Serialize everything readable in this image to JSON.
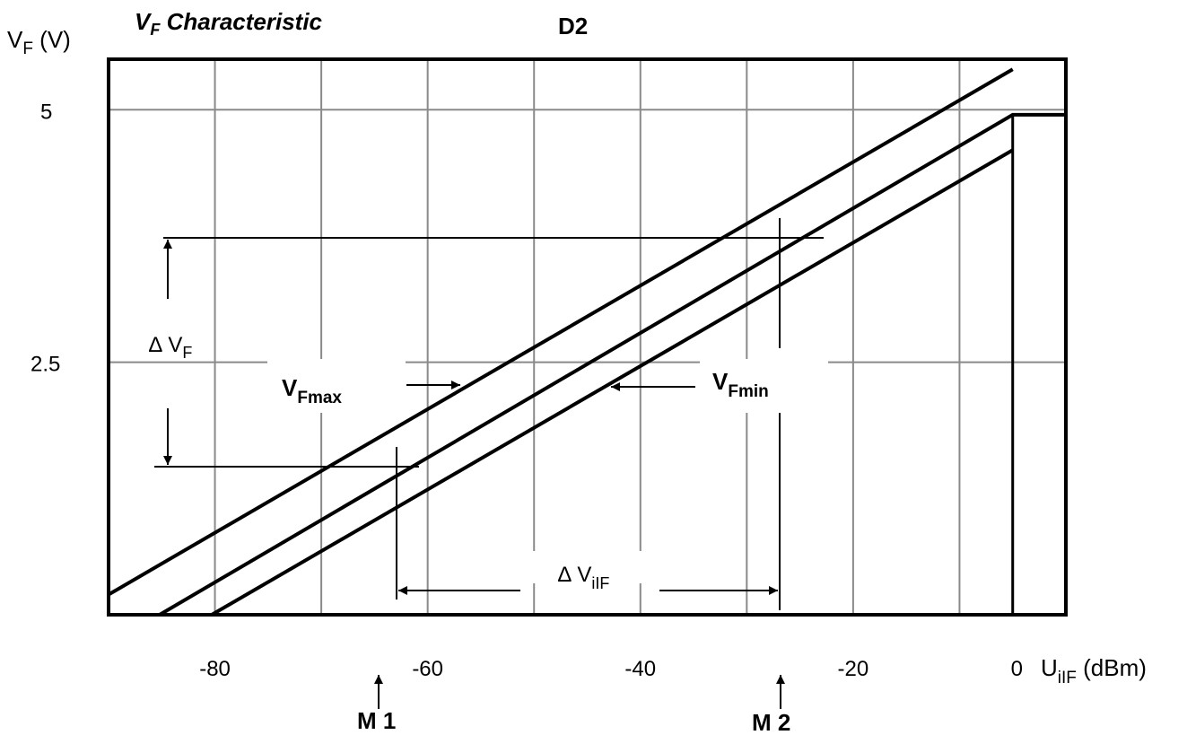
{
  "chart_data": {
    "type": "line",
    "title": "Characteristic",
    "title_symbol": "V",
    "title_symbol_sub": "F",
    "subtitle": "D2",
    "ylabel": "V",
    "ylabel_sub": "F",
    "ylabel_unit": " (V)",
    "xlabel": "U",
    "xlabel_sub": "iIF",
    "xlabel_unit": " (dBm)",
    "xlim": [
      -90,
      0
    ],
    "ylim": [
      0,
      5.5
    ],
    "x_ticks": [
      {
        "value": -80,
        "label": "-80"
      },
      {
        "value": -60,
        "label": "-60"
      },
      {
        "value": -40,
        "label": "-40"
      },
      {
        "value": -20,
        "label": "-20"
      },
      {
        "value": 0,
        "label": "0"
      }
    ],
    "y_ticks": [
      {
        "value": 5,
        "label": "5"
      },
      {
        "value": 2.5,
        "label": "2.5"
      }
    ],
    "grid": true,
    "series": [
      {
        "name": "VFmax",
        "points": [
          [
            -90,
            0.2
          ],
          [
            -5,
            5.4
          ]
        ]
      },
      {
        "name": "",
        "points": [
          [
            -85.2,
            0
          ],
          [
            -5,
            4.95
          ],
          [
            0,
            4.95
          ]
        ]
      },
      {
        "name": "VFmin",
        "points": [
          [
            -80.3,
            0
          ],
          [
            -5,
            4.6
          ]
        ]
      }
    ],
    "annotations": {
      "vfmax": {
        "text": "V",
        "sub": "Fmax"
      },
      "vfmin": {
        "text": "V",
        "sub": "Fmin"
      },
      "delta_vf": {
        "text": "∆ V",
        "sub": "F"
      },
      "delta_viif": {
        "text": "∆  V",
        "sub": "iIF"
      },
      "m1": {
        "text": "M 1",
        "x": -60,
        "y": 1.45
      },
      "m2": {
        "text": "M 2",
        "x": -22,
        "y": 3.8
      }
    }
  }
}
